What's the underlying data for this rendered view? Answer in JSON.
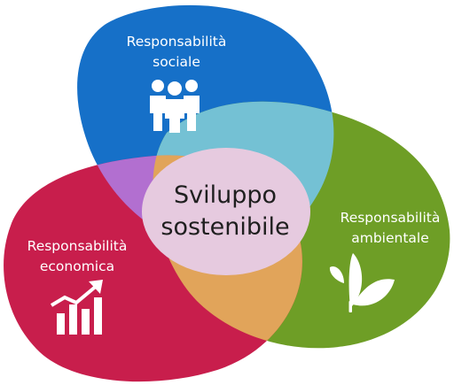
{
  "diagram": {
    "center": {
      "line1": "Sviluppo",
      "line2": "sostenibile"
    },
    "social": {
      "line1": "Responsabilità",
      "line2": "sociale",
      "icon": "people-icon",
      "color": "#1670c8"
    },
    "environmental": {
      "line1": "Responsabilità",
      "line2": "ambientale",
      "icon": "leaf-icon",
      "color": "#6e9e26"
    },
    "economic": {
      "line1": "Responsabilità",
      "line2": "economica",
      "icon": "growth-chart-icon",
      "color": "#c81e4c"
    },
    "overlap_colors": {
      "social_environmental": "#74c1d4",
      "social_economic": "#b26fd0",
      "environmental_economic": "#e1a45a",
      "center": "#e6cadf"
    }
  }
}
